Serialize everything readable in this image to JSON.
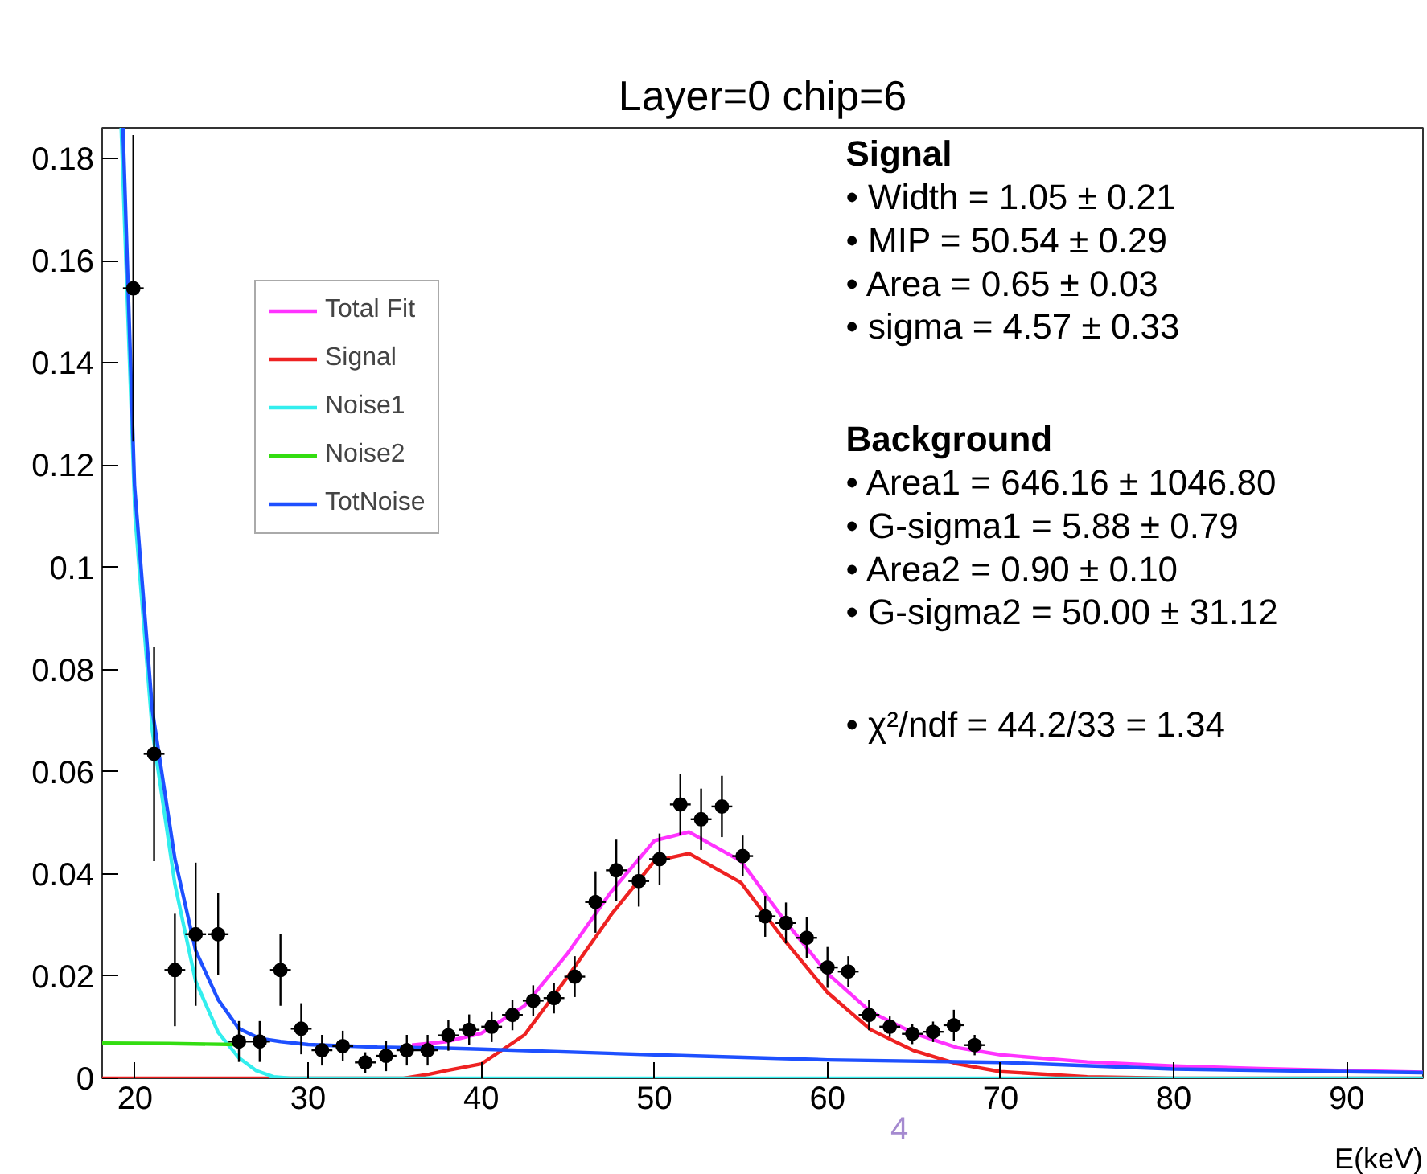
{
  "chart_data": {
    "type": "line",
    "title": "Layer=0 chip=6",
    "xlabel": "E(keV)",
    "xlim": [
      18.1,
      94.4
    ],
    "ylim": [
      0,
      0.186
    ],
    "xticks": [
      20,
      30,
      40,
      50,
      60,
      70,
      80,
      90
    ],
    "yticks": [
      0,
      0.02,
      0.04,
      0.06,
      0.08,
      0.1,
      0.12,
      0.14,
      0.16,
      0.18
    ],
    "grid": false,
    "legend": "top left",
    "line_style": "solid",
    "series": [
      {
        "type": "scatter",
        "marker": "circle",
        "color": "#000000",
        "x": [
          19.9,
          21.1,
          22.3,
          23.5,
          24.8,
          26.0,
          27.2,
          28.4,
          29.6,
          30.8,
          32.0,
          33.3,
          34.5,
          35.7,
          36.9,
          38.1,
          39.3,
          40.6,
          41.8,
          43.0,
          44.2,
          45.4,
          46.6,
          47.8,
          49.1,
          50.3,
          51.5,
          52.7,
          53.9,
          55.1,
          56.4,
          57.6,
          58.8,
          60.0,
          61.2,
          62.4,
          63.6,
          64.9,
          66.1,
          67.3,
          68.5
        ],
        "values": [
          0.1546,
          0.0635,
          0.0212,
          0.0282,
          0.0282,
          0.0072,
          0.0072,
          0.0212,
          0.0097,
          0.0055,
          0.0063,
          0.0031,
          0.0044,
          0.0055,
          0.0055,
          0.0084,
          0.0095,
          0.0101,
          0.0124,
          0.0152,
          0.0157,
          0.0199,
          0.0345,
          0.0407,
          0.0386,
          0.0429,
          0.0536,
          0.0507,
          0.0532,
          0.0435,
          0.0317,
          0.0304,
          0.0275,
          0.0217,
          0.0209,
          0.0124,
          0.0101,
          0.0087,
          0.0091,
          0.0104,
          0.0065
        ],
        "errors": [
          0.03,
          0.021,
          0.011,
          0.014,
          0.008,
          0.004,
          0.004,
          0.007,
          0.005,
          0.003,
          0.003,
          0.002,
          0.003,
          0.003,
          0.003,
          0.003,
          0.003,
          0.003,
          0.003,
          0.003,
          0.003,
          0.004,
          0.006,
          0.006,
          0.005,
          0.005,
          0.006,
          0.006,
          0.006,
          0.004,
          0.004,
          0.004,
          0.004,
          0.004,
          0.003,
          0.003,
          0.002,
          0.002,
          0.002,
          0.003,
          0.002
        ],
        "xerrors": [
          0.6,
          0.6,
          0.6,
          0.6,
          0.6,
          0.6,
          0.6,
          0.6,
          0.6,
          0.6,
          0.6,
          0.6,
          0.6,
          0.6,
          0.6,
          0.6,
          0.6,
          0.6,
          0.6,
          0.6,
          0.6,
          0.6,
          0.6,
          0.6,
          0.6,
          0.6,
          0.6,
          0.6,
          0.6,
          0.6,
          0.6,
          0.6,
          0.6,
          0.6,
          0.6,
          0.6,
          0.6,
          0.6,
          0.6,
          0.6,
          0.6
        ]
      },
      {
        "name": "Total Fit",
        "color": "#ff33ff",
        "x": [
          36,
          38,
          40,
          42.5,
          45,
          47.5,
          50,
          52,
          55,
          57.5,
          60,
          62.5,
          65,
          67.5,
          70,
          75,
          80,
          85,
          90,
          94.4
        ],
        "values": [
          0.0065,
          0.0072,
          0.0088,
          0.0142,
          0.0245,
          0.0365,
          0.0465,
          0.0482,
          0.0425,
          0.031,
          0.0205,
          0.013,
          0.0088,
          0.006,
          0.0046,
          0.0032,
          0.0024,
          0.0019,
          0.0015,
          0.0012
        ]
      },
      {
        "name": "Signal",
        "color": "#ee2222",
        "x": [
          18.1,
          35.5,
          37,
          38,
          40,
          42.5,
          45,
          47.5,
          50,
          52,
          55,
          57.5,
          60,
          62.5,
          65,
          67.5,
          70,
          75,
          80,
          94.4
        ],
        "values": [
          0,
          0,
          0.0008,
          0.0015,
          0.0028,
          0.0085,
          0.0199,
          0.032,
          0.0425,
          0.044,
          0.0383,
          0.0271,
          0.0168,
          0.0095,
          0.0054,
          0.0028,
          0.0013,
          0.0003,
          0,
          0
        ]
      },
      {
        "name": "Noise1",
        "color": "#33eeee",
        "x": [
          19.2,
          20,
          21,
          22.3,
          23.5,
          24.8,
          26,
          27,
          28,
          29,
          40,
          60,
          94.4
        ],
        "values": [
          0.186,
          0.11,
          0.068,
          0.038,
          0.019,
          0.009,
          0.004,
          0.0015,
          0.0003,
          0,
          0,
          0,
          0
        ]
      },
      {
        "name": "Noise2",
        "color": "#33dd11",
        "x": [
          18.1,
          22,
          26
        ],
        "values": [
          0.0069,
          0.0068,
          0.0066
        ]
      },
      {
        "name": "TotNoise",
        "color": "#1e50ff",
        "x": [
          19.3,
          19.97,
          21,
          22.3,
          23.5,
          24.8,
          26,
          27.2,
          28.4,
          30,
          34,
          38,
          40,
          50,
          60,
          70,
          80,
          90,
          94.4
        ],
        "values": [
          0.186,
          0.116,
          0.072,
          0.043,
          0.025,
          0.0154,
          0.0097,
          0.0078,
          0.0072,
          0.0066,
          0.0061,
          0.0059,
          0.0057,
          0.0046,
          0.0036,
          0.0031,
          0.0018,
          0.0013,
          0.0011
        ]
      }
    ],
    "annotations": [
      "Signal",
      "• Width = 1.05 ± 0.21",
      "• MIP = 50.54 ± 0.29",
      "• Area = 0.65 ± 0.03",
      "• sigma = 4.57 ± 0.33",
      "Background",
      "• Area1 = 646.16 ± 1046.80",
      "• G-sigma1 = 5.88 ± 0.79",
      "• Area2 = 0.90 ± 0.10",
      "• G-sigma2 = 50.00 ± 31.12",
      "• χ²/ndf = 44.2/33 = 1.34",
      "4"
    ]
  }
}
